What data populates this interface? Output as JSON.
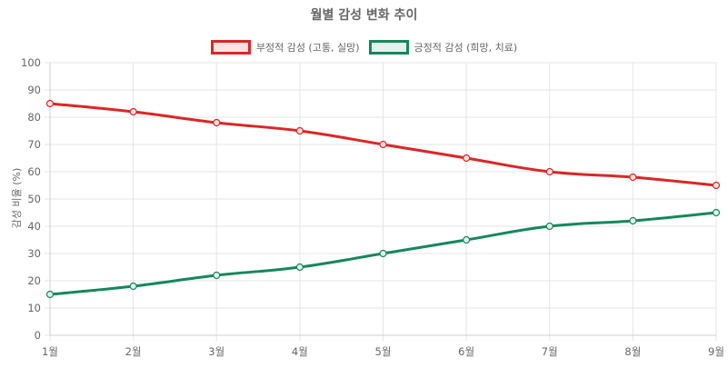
{
  "chart_data": {
    "type": "line",
    "title": "월별 감성 변화 추이",
    "xlabel": "",
    "ylabel": "감성 비율 (%)",
    "ylim": [
      0,
      100
    ],
    "yticks": [
      0,
      10,
      20,
      30,
      40,
      50,
      60,
      70,
      80,
      90,
      100
    ],
    "grid": true,
    "legend_position": "top",
    "categories": [
      "1월",
      "2월",
      "3월",
      "4월",
      "5월",
      "6월",
      "7월",
      "8월",
      "9월"
    ],
    "series": [
      {
        "name": "부정적 감성 (고통, 실망)",
        "color": "#dc2626",
        "fill": "#fde2e2",
        "values": [
          85,
          82,
          78,
          75,
          70,
          65,
          60,
          58,
          55
        ]
      },
      {
        "name": "긍정적 감성 (희망, 치료)",
        "color": "#15885a",
        "fill": "#e3f2ec",
        "values": [
          15,
          18,
          22,
          25,
          30,
          35,
          40,
          42,
          45
        ]
      }
    ]
  }
}
